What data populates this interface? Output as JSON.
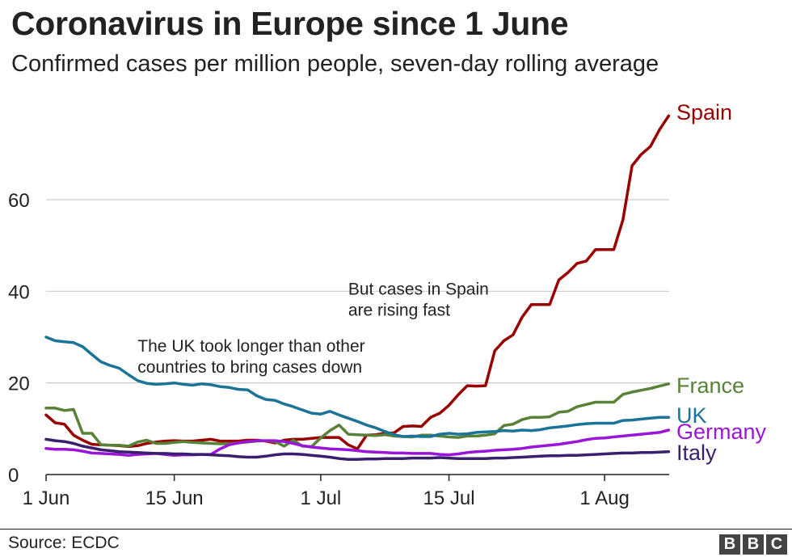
{
  "title": "Coronavirus in Europe since 1 June",
  "subtitle": "Confirmed cases per million people, seven-day rolling average",
  "source": "Source: ECDC",
  "logo": [
    "B",
    "B",
    "C"
  ],
  "chart_data": {
    "type": "line",
    "ylim": [
      0,
      79
    ],
    "yticks": [
      0,
      20,
      40,
      60
    ],
    "xticks": [
      {
        "date": "2020-06-01",
        "label": "1 Jun"
      },
      {
        "date": "2020-06-15",
        "label": "15 Jun"
      },
      {
        "date": "2020-07-01",
        "label": "1 Jul"
      },
      {
        "date": "2020-07-15",
        "label": "15 Jul"
      },
      {
        "date": "2020-08-01",
        "label": "1 Aug"
      }
    ],
    "grid": true,
    "x": [
      "2020-06-01",
      "2020-06-02",
      "2020-06-03",
      "2020-06-04",
      "2020-06-05",
      "2020-06-06",
      "2020-06-07",
      "2020-06-08",
      "2020-06-09",
      "2020-06-10",
      "2020-06-11",
      "2020-06-12",
      "2020-06-13",
      "2020-06-14",
      "2020-06-15",
      "2020-06-16",
      "2020-06-17",
      "2020-06-18",
      "2020-06-19",
      "2020-06-20",
      "2020-06-21",
      "2020-06-22",
      "2020-06-23",
      "2020-06-24",
      "2020-06-25",
      "2020-06-26",
      "2020-06-27",
      "2020-06-28",
      "2020-06-29",
      "2020-06-30",
      "2020-07-01",
      "2020-07-02",
      "2020-07-03",
      "2020-07-04",
      "2020-07-05",
      "2020-07-06",
      "2020-07-07",
      "2020-07-08",
      "2020-07-09",
      "2020-07-10",
      "2020-07-11",
      "2020-07-12",
      "2020-07-13",
      "2020-07-14",
      "2020-07-15",
      "2020-07-16",
      "2020-07-17",
      "2020-07-18",
      "2020-07-19",
      "2020-07-20",
      "2020-07-21",
      "2020-07-22",
      "2020-07-23",
      "2020-07-24",
      "2020-07-25",
      "2020-07-26",
      "2020-07-27",
      "2020-07-28",
      "2020-07-29",
      "2020-07-30",
      "2020-07-31",
      "2020-08-01",
      "2020-08-02",
      "2020-08-03",
      "2020-08-04",
      "2020-08-05",
      "2020-08-06",
      "2020-08-07",
      "2020-08-08"
    ],
    "series": [
      {
        "name": "Spain",
        "color": "#990000",
        "values": [
          13,
          11.3,
          11,
          8.6,
          7.5,
          6.6,
          6.5,
          6.4,
          6.3,
          6.1,
          6.3,
          6.8,
          7.1,
          7.3,
          7.4,
          7.3,
          7.3,
          7.5,
          7.7,
          7.3,
          7.3,
          7.3,
          7.5,
          7.5,
          7.3,
          6.9,
          7.5,
          7.7,
          7.7,
          7.9,
          8.1,
          8.1,
          8.1,
          6.5,
          5.6,
          8.6,
          8.7,
          9.0,
          9.1,
          10.5,
          10.6,
          10.5,
          12.5,
          13.4,
          15.1,
          17.4,
          19.4,
          19.3,
          19.4,
          27,
          29.2,
          30.5,
          34.4,
          37.1,
          37.1,
          37.1,
          42.5,
          44.1,
          46.1,
          46.6,
          49.1,
          49.1,
          49.1,
          55.6,
          67.4,
          69.9,
          71.6,
          75.3,
          78.3
        ]
      },
      {
        "name": "France",
        "color": "#588238",
        "values": [
          14.5,
          14.5,
          14,
          14.2,
          9.0,
          9.0,
          6.5,
          6.4,
          6.4,
          6.2,
          7.1,
          7.5,
          6.8,
          6.8,
          7.0,
          7.2,
          7.0,
          6.9,
          6.8,
          6.7,
          6.7,
          6.9,
          7.1,
          7.3,
          7.4,
          7.2,
          6.2,
          7.5,
          6.2,
          6.1,
          8.0,
          9.6,
          10.8,
          8.8,
          8.7,
          8.6,
          8.5,
          8.7,
          8.4,
          8.3,
          8.2,
          8.6,
          8.6,
          8.4,
          8.2,
          8.1,
          8.4,
          8.4,
          8.6,
          8.9,
          10.7,
          11,
          12,
          12.5,
          12.5,
          12.6,
          13.6,
          13.8,
          14.8,
          15.3,
          15.8,
          15.8,
          15.8,
          17.5,
          18.0,
          18.4,
          18.8,
          19.3,
          19.8
        ]
      },
      {
        "name": "UK",
        "color": "#1B7498",
        "values": [
          30,
          29.2,
          29,
          28.8,
          27.9,
          26.2,
          24.6,
          23.8,
          23.2,
          21.8,
          20.5,
          19.9,
          19.7,
          19.8,
          20,
          19.7,
          19.5,
          19.8,
          19.6,
          19.2,
          19,
          18.6,
          18.5,
          17.2,
          16.4,
          16.2,
          15.4,
          14.8,
          14.1,
          13.4,
          13.2,
          13.8,
          13,
          12.3,
          11.6,
          10.8,
          10.2,
          9.4,
          8.7,
          8.3,
          8.4,
          8.3,
          8.3,
          8.8,
          9.0,
          8.8,
          8.9,
          9.2,
          9.3,
          9.4,
          9.6,
          9.5,
          9.7,
          9.6,
          9.8,
          10.2,
          10.4,
          10.6,
          10.9,
          11.1,
          11.2,
          11.2,
          11.2,
          11.8,
          11.9,
          12.1,
          12.3,
          12.5,
          12.5
        ]
      },
      {
        "name": "Germany",
        "color": "#9A15D8",
        "values": [
          5.7,
          5.5,
          5.5,
          5.4,
          5.1,
          4.7,
          4.6,
          4.5,
          4.4,
          4.2,
          4.4,
          4.5,
          4.6,
          4.4,
          4.2,
          4.3,
          4.3,
          4.4,
          4.4,
          5.6,
          6.5,
          6.9,
          7.2,
          7.4,
          7.4,
          7.4,
          7.2,
          6.8,
          6.3,
          6.0,
          5.8,
          5.6,
          5.5,
          5.4,
          5.2,
          5.0,
          4.9,
          4.8,
          4.7,
          4.7,
          4.6,
          4.6,
          4.6,
          4.4,
          4.3,
          4.5,
          4.8,
          5.0,
          5.1,
          5.3,
          5.4,
          5.5,
          5.7,
          6.0,
          6.2,
          6.4,
          6.6,
          6.9,
          7.2,
          7.6,
          7.9,
          8.0,
          8.2,
          8.4,
          8.6,
          8.8,
          9.0,
          9.2,
          9.7
        ]
      },
      {
        "name": "Italy",
        "color": "#3A1F6E",
        "values": [
          7.7,
          7.4,
          7.2,
          6.8,
          6.2,
          5.8,
          5.4,
          5.2,
          5.0,
          4.9,
          4.8,
          4.7,
          4.6,
          4.6,
          4.5,
          4.5,
          4.4,
          4.4,
          4.3,
          4.2,
          4.1,
          3.9,
          3.8,
          3.8,
          4.0,
          4.3,
          4.5,
          4.5,
          4.4,
          4.2,
          4.0,
          3.8,
          3.5,
          3.3,
          3.3,
          3.4,
          3.4,
          3.5,
          3.5,
          3.5,
          3.6,
          3.6,
          3.6,
          3.7,
          3.6,
          3.5,
          3.5,
          3.5,
          3.5,
          3.6,
          3.6,
          3.7,
          3.8,
          3.9,
          4.0,
          4.1,
          4.1,
          4.2,
          4.2,
          4.3,
          4.4,
          4.5,
          4.6,
          4.7,
          4.7,
          4.8,
          4.8,
          4.9,
          5.0
        ]
      }
    ],
    "annotations": [
      {
        "lines": [
          "The UK took longer than other",
          "countries to bring cases down"
        ],
        "date": "2020-06-11",
        "y": 26.8
      },
      {
        "lines": [
          "But cases in Spain",
          "are rising fast"
        ],
        "date": "2020-07-04",
        "y": 39.3
      }
    ]
  }
}
